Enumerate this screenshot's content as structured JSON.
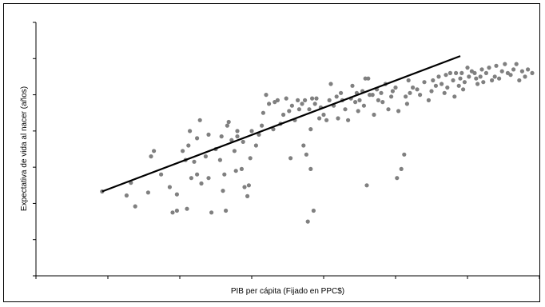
{
  "chart_data": {
    "type": "scatter",
    "title": "",
    "xlabel": "PIB per cápita (Fijado en PPC$)",
    "ylabel": "Expectativa de vida al nacer (años)",
    "x_tick_labels_shown": false,
    "y_tick_labels_shown": false,
    "xlim": [
      0,
      35
    ],
    "ylim": [
      0,
      7
    ],
    "x_ticks": [
      0,
      5,
      10,
      15,
      20,
      25,
      30,
      35
    ],
    "y_ticks": [
      0,
      1,
      2,
      3,
      4,
      5,
      6,
      7
    ],
    "grid": false,
    "legend": "none",
    "marker_color": "#808080",
    "trendline_color": "#000000",
    "trendline": {
      "x": [
        4.6,
        29.5
      ],
      "y": [
        2.33,
        6.07
      ]
    },
    "series": [
      {
        "points": [
          [
            4.6,
            2.33
          ],
          [
            6.3,
            2.22
          ],
          [
            6.6,
            2.57
          ],
          [
            6.9,
            1.92
          ],
          [
            7.8,
            2.3
          ],
          [
            8.0,
            3.3
          ],
          [
            8.2,
            3.45
          ],
          [
            8.7,
            2.8
          ],
          [
            9.3,
            2.45
          ],
          [
            9.5,
            1.75
          ],
          [
            9.8,
            2.25
          ],
          [
            9.8,
            1.8
          ],
          [
            10.2,
            3.45
          ],
          [
            10.4,
            3.2
          ],
          [
            10.5,
            1.85
          ],
          [
            10.6,
            3.6
          ],
          [
            10.7,
            4.0
          ],
          [
            10.8,
            2.7
          ],
          [
            11.0,
            3.15
          ],
          [
            11.2,
            2.8
          ],
          [
            11.2,
            3.8
          ],
          [
            11.4,
            4.3
          ],
          [
            11.5,
            2.55
          ],
          [
            11.8,
            3.3
          ],
          [
            12.0,
            2.7
          ],
          [
            12.0,
            3.9
          ],
          [
            12.2,
            1.75
          ],
          [
            12.5,
            3.5
          ],
          [
            12.8,
            3.2
          ],
          [
            12.9,
            3.85
          ],
          [
            13.0,
            2.35
          ],
          [
            13.1,
            2.8
          ],
          [
            13.2,
            1.8
          ],
          [
            13.3,
            4.15
          ],
          [
            13.4,
            4.25
          ],
          [
            13.6,
            3.75
          ],
          [
            13.8,
            3.45
          ],
          [
            13.9,
            2.9
          ],
          [
            14.0,
            3.85
          ],
          [
            14.0,
            4.0
          ],
          [
            14.3,
            2.95
          ],
          [
            14.4,
            3.7
          ],
          [
            14.5,
            2.45
          ],
          [
            14.7,
            2.2
          ],
          [
            14.8,
            2.5
          ],
          [
            14.9,
            3.25
          ],
          [
            15.0,
            4.0
          ],
          [
            15.3,
            3.6
          ],
          [
            15.5,
            3.9
          ],
          [
            15.7,
            4.15
          ],
          [
            15.8,
            4.5
          ],
          [
            16.0,
            5.0
          ],
          [
            16.2,
            4.75
          ],
          [
            16.5,
            4.05
          ],
          [
            16.6,
            4.8
          ],
          [
            16.8,
            4.85
          ],
          [
            17.0,
            4.2
          ],
          [
            17.2,
            4.45
          ],
          [
            17.4,
            4.9
          ],
          [
            17.6,
            4.55
          ],
          [
            17.7,
            3.25
          ],
          [
            17.8,
            4.7
          ],
          [
            18.0,
            4.3
          ],
          [
            18.2,
            4.85
          ],
          [
            18.3,
            4.6
          ],
          [
            18.5,
            4.75
          ],
          [
            18.6,
            3.6
          ],
          [
            18.7,
            4.85
          ],
          [
            18.8,
            3.35
          ],
          [
            18.9,
            1.5
          ],
          [
            19.0,
            4.6
          ],
          [
            19.1,
            2.95
          ],
          [
            19.1,
            4.05
          ],
          [
            19.2,
            4.9
          ],
          [
            19.3,
            1.8
          ],
          [
            19.4,
            4.75
          ],
          [
            19.5,
            4.9
          ],
          [
            19.7,
            4.35
          ],
          [
            19.8,
            4.65
          ],
          [
            20.0,
            4.45
          ],
          [
            20.2,
            4.3
          ],
          [
            20.4,
            4.85
          ],
          [
            20.5,
            5.3
          ],
          [
            20.7,
            4.7
          ],
          [
            20.9,
            4.95
          ],
          [
            21.0,
            4.35
          ],
          [
            21.2,
            5.05
          ],
          [
            21.3,
            4.85
          ],
          [
            21.5,
            4.6
          ],
          [
            21.7,
            4.3
          ],
          [
            21.9,
            4.9
          ],
          [
            22.0,
            5.25
          ],
          [
            22.2,
            4.8
          ],
          [
            22.3,
            5.05
          ],
          [
            22.4,
            4.55
          ],
          [
            22.5,
            4.85
          ],
          [
            22.7,
            5.1
          ],
          [
            22.8,
            4.7
          ],
          [
            22.9,
            5.45
          ],
          [
            23.0,
            2.5
          ],
          [
            23.1,
            5.45
          ],
          [
            23.2,
            5.0
          ],
          [
            23.4,
            5.0
          ],
          [
            23.5,
            4.45
          ],
          [
            23.7,
            5.15
          ],
          [
            23.8,
            4.85
          ],
          [
            24.0,
            5.05
          ],
          [
            24.1,
            4.8
          ],
          [
            24.3,
            5.3
          ],
          [
            24.5,
            4.6
          ],
          [
            24.7,
            4.95
          ],
          [
            24.8,
            5.1
          ],
          [
            25.0,
            5.2
          ],
          [
            25.1,
            2.7
          ],
          [
            25.2,
            4.55
          ],
          [
            25.4,
            2.95
          ],
          [
            25.6,
            3.35
          ],
          [
            25.7,
            4.95
          ],
          [
            25.8,
            4.75
          ],
          [
            25.9,
            5.4
          ],
          [
            26.0,
            5.05
          ],
          [
            26.2,
            5.2
          ],
          [
            26.5,
            5.15
          ],
          [
            26.7,
            5.0
          ],
          [
            27.0,
            5.35
          ],
          [
            27.3,
            4.85
          ],
          [
            27.5,
            5.1
          ],
          [
            27.6,
            5.4
          ],
          [
            27.8,
            5.25
          ],
          [
            28.0,
            5.5
          ],
          [
            28.2,
            5.3
          ],
          [
            28.4,
            5.05
          ],
          [
            28.5,
            5.55
          ],
          [
            28.6,
            5.2
          ],
          [
            28.8,
            5.6
          ],
          [
            29.0,
            5.4
          ],
          [
            29.1,
            4.95
          ],
          [
            29.2,
            5.6
          ],
          [
            29.4,
            5.25
          ],
          [
            29.5,
            5.45
          ],
          [
            29.6,
            5.6
          ],
          [
            29.7,
            5.15
          ],
          [
            29.8,
            5.35
          ],
          [
            30.0,
            5.75
          ],
          [
            30.1,
            5.5
          ],
          [
            30.3,
            5.65
          ],
          [
            30.5,
            5.6
          ],
          [
            30.6,
            5.45
          ],
          [
            30.7,
            5.3
          ],
          [
            30.9,
            5.5
          ],
          [
            31.0,
            5.7
          ],
          [
            31.1,
            5.35
          ],
          [
            31.3,
            5.6
          ],
          [
            31.5,
            5.75
          ],
          [
            31.7,
            5.4
          ],
          [
            31.9,
            5.5
          ],
          [
            32.0,
            5.8
          ],
          [
            32.2,
            5.45
          ],
          [
            32.4,
            5.65
          ],
          [
            32.6,
            5.85
          ],
          [
            32.8,
            5.6
          ],
          [
            33.0,
            5.55
          ],
          [
            33.2,
            5.7
          ],
          [
            33.4,
            5.85
          ],
          [
            33.6,
            5.4
          ],
          [
            33.8,
            5.65
          ],
          [
            34.0,
            5.5
          ],
          [
            34.2,
            5.7
          ],
          [
            34.5,
            5.6
          ]
        ]
      }
    ]
  }
}
